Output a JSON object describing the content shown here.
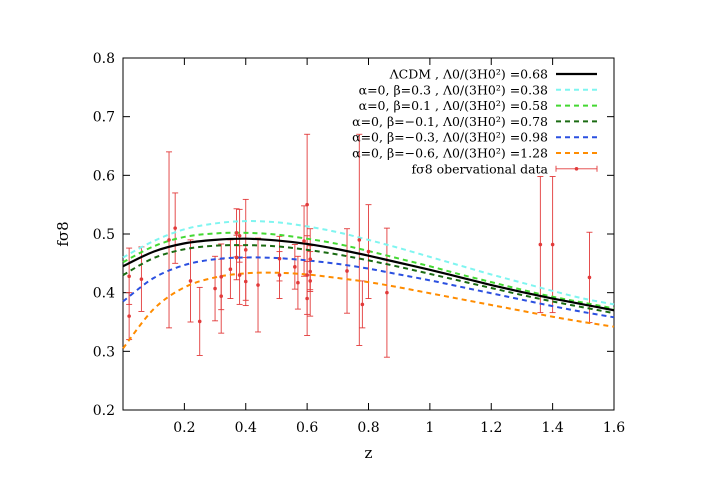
{
  "chart_data": {
    "type": "line",
    "xlabel": "z",
    "ylabel": "fσ8",
    "xlim": [
      0.0,
      1.6
    ],
    "ylim": [
      0.2,
      0.8
    ],
    "xticks": [
      0.2,
      0.4,
      0.6,
      0.8,
      1.0,
      1.2,
      1.4,
      1.6
    ],
    "xtick_labels": [
      "0.2",
      "0.4",
      "0.6",
      "0.8",
      "1",
      "1.2",
      "1.4",
      "1.6"
    ],
    "yticks": [
      0.2,
      0.3,
      0.4,
      0.5,
      0.6,
      0.7,
      0.8
    ],
    "ytick_labels": [
      "0.2",
      "0.3",
      "0.4",
      "0.5",
      "0.6",
      "0.7",
      "0.8"
    ],
    "grid": false,
    "legend_position": "top-right",
    "series": [
      {
        "name": "ΛCDM , Λ0/(3H0²) =0.68",
        "color": "#000000",
        "style": "solid",
        "x": [
          0.0,
          0.1,
          0.2,
          0.3,
          0.4,
          0.5,
          0.6,
          0.7,
          0.8,
          0.9,
          1.0,
          1.1,
          1.2,
          1.3,
          1.4,
          1.5,
          1.6
        ],
        "y": [
          0.445,
          0.47,
          0.484,
          0.49,
          0.492,
          0.489,
          0.483,
          0.474,
          0.463,
          0.451,
          0.439,
          0.426,
          0.413,
          0.401,
          0.39,
          0.38,
          0.37
        ]
      },
      {
        "name": "α=0, β=0.3 , Λ0/(3H0²) =0.38",
        "color": "#7ff5f0",
        "style": "dashed",
        "x": [
          0.0,
          0.1,
          0.2,
          0.3,
          0.4,
          0.5,
          0.6,
          0.7,
          0.8,
          0.9,
          1.0,
          1.1,
          1.2,
          1.3,
          1.4,
          1.5,
          1.6
        ],
        "y": [
          0.46,
          0.488,
          0.508,
          0.518,
          0.522,
          0.52,
          0.513,
          0.503,
          0.49,
          0.476,
          0.461,
          0.446,
          0.431,
          0.417,
          0.403,
          0.39,
          0.38
        ]
      },
      {
        "name": "α=0, β=0.1 , Λ0/(3H0²) =0.58",
        "color": "#44d832",
        "style": "dashed",
        "x": [
          0.0,
          0.1,
          0.2,
          0.3,
          0.4,
          0.5,
          0.6,
          0.7,
          0.8,
          0.9,
          1.0,
          1.1,
          1.2,
          1.3,
          1.4,
          1.5,
          1.6
        ],
        "y": [
          0.452,
          0.479,
          0.495,
          0.501,
          0.502,
          0.499,
          0.492,
          0.483,
          0.471,
          0.458,
          0.445,
          0.431,
          0.418,
          0.405,
          0.393,
          0.383,
          0.373
        ]
      },
      {
        "name": "α=0, β=−0.1, Λ0/(3H0²) =0.78",
        "color": "#1a6b12",
        "style": "dashed",
        "x": [
          0.0,
          0.1,
          0.2,
          0.3,
          0.4,
          0.5,
          0.6,
          0.7,
          0.8,
          0.9,
          1.0,
          1.1,
          1.2,
          1.3,
          1.4,
          1.5,
          1.6
        ],
        "y": [
          0.43,
          0.459,
          0.474,
          0.48,
          0.481,
          0.479,
          0.473,
          0.465,
          0.455,
          0.444,
          0.432,
          0.42,
          0.408,
          0.396,
          0.385,
          0.375,
          0.365
        ]
      },
      {
        "name": "α=0, β=−0.3, Λ0/(3H0²) =0.98",
        "color": "#2b50e0",
        "style": "dashed",
        "x": [
          0.0,
          0.1,
          0.2,
          0.3,
          0.4,
          0.5,
          0.6,
          0.7,
          0.8,
          0.9,
          1.0,
          1.1,
          1.2,
          1.3,
          1.4,
          1.5,
          1.6
        ],
        "y": [
          0.385,
          0.425,
          0.447,
          0.457,
          0.46,
          0.459,
          0.455,
          0.449,
          0.441,
          0.431,
          0.421,
          0.41,
          0.399,
          0.388,
          0.377,
          0.367,
          0.358
        ]
      },
      {
        "name": "α=0, β=−0.6, Λ0/(3H0²) =1.28",
        "color": "#ff8c00",
        "style": "dashed",
        "x": [
          0.0,
          0.1,
          0.2,
          0.3,
          0.4,
          0.5,
          0.6,
          0.7,
          0.8,
          0.9,
          1.0,
          1.1,
          1.2,
          1.3,
          1.4,
          1.5,
          1.6
        ],
        "y": [
          0.305,
          0.372,
          0.409,
          0.426,
          0.433,
          0.434,
          0.431,
          0.425,
          0.418,
          0.409,
          0.399,
          0.389,
          0.379,
          0.369,
          0.359,
          0.35,
          0.342
        ]
      }
    ],
    "observations": {
      "name": "fσ8 obervational data",
      "color": "#e23a3a",
      "points": [
        {
          "x": 0.02,
          "y": 0.428,
          "err": 0.048
        },
        {
          "x": 0.02,
          "y": 0.36,
          "err": 0.04
        },
        {
          "x": 0.06,
          "y": 0.423,
          "err": 0.055
        },
        {
          "x": 0.15,
          "y": 0.49,
          "err": 0.15
        },
        {
          "x": 0.17,
          "y": 0.51,
          "err": 0.06
        },
        {
          "x": 0.22,
          "y": 0.42,
          "err": 0.07
        },
        {
          "x": 0.25,
          "y": 0.351,
          "err": 0.058
        },
        {
          "x": 0.3,
          "y": 0.407,
          "err": 0.055
        },
        {
          "x": 0.32,
          "y": 0.394,
          "err": 0.063
        },
        {
          "x": 0.32,
          "y": 0.427,
          "err": 0.056
        },
        {
          "x": 0.35,
          "y": 0.44,
          "err": 0.05
        },
        {
          "x": 0.37,
          "y": 0.46,
          "err": 0.038
        },
        {
          "x": 0.37,
          "y": 0.502,
          "err": 0.041
        },
        {
          "x": 0.38,
          "y": 0.497,
          "err": 0.045
        },
        {
          "x": 0.38,
          "y": 0.43,
          "err": 0.05
        },
        {
          "x": 0.4,
          "y": 0.419,
          "err": 0.041
        },
        {
          "x": 0.4,
          "y": 0.473,
          "err": 0.086
        },
        {
          "x": 0.44,
          "y": 0.413,
          "err": 0.08
        },
        {
          "x": 0.51,
          "y": 0.458,
          "err": 0.038
        },
        {
          "x": 0.51,
          "y": 0.43,
          "err": 0.04
        },
        {
          "x": 0.56,
          "y": 0.444,
          "err": 0.038
        },
        {
          "x": 0.57,
          "y": 0.417,
          "err": 0.045
        },
        {
          "x": 0.59,
          "y": 0.488,
          "err": 0.06
        },
        {
          "x": 0.6,
          "y": 0.39,
          "err": 0.063
        },
        {
          "x": 0.6,
          "y": 0.43,
          "err": 0.067
        },
        {
          "x": 0.6,
          "y": 0.55,
          "err": 0.12
        },
        {
          "x": 0.61,
          "y": 0.457,
          "err": 0.052
        },
        {
          "x": 0.61,
          "y": 0.436,
          "err": 0.034
        },
        {
          "x": 0.61,
          "y": 0.42,
          "err": 0.06
        },
        {
          "x": 0.73,
          "y": 0.437,
          "err": 0.072
        },
        {
          "x": 0.77,
          "y": 0.49,
          "err": 0.18
        },
        {
          "x": 0.78,
          "y": 0.38,
          "err": 0.04
        },
        {
          "x": 0.8,
          "y": 0.47,
          "err": 0.08
        },
        {
          "x": 0.86,
          "y": 0.4,
          "err": 0.11
        },
        {
          "x": 1.36,
          "y": 0.482,
          "err": 0.116
        },
        {
          "x": 1.4,
          "y": 0.482,
          "err": 0.116
        },
        {
          "x": 1.52,
          "y": 0.426,
          "err": 0.077
        }
      ]
    }
  }
}
